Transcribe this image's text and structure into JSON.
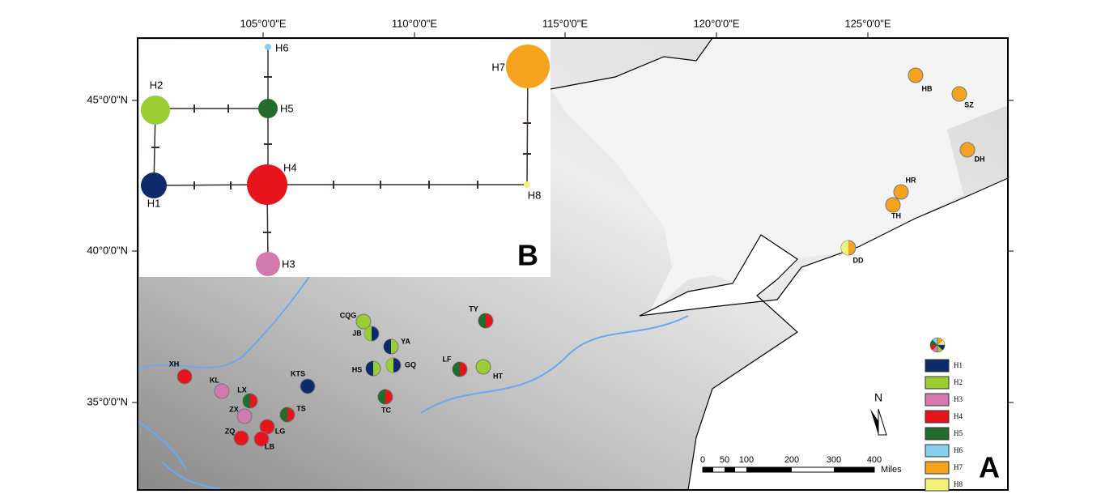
{
  "axes": {
    "top": [
      "105°0'0\"E",
      "110°0'0\"E",
      "115°0'0\"E",
      "120°0'0\"E",
      "125°0'0\"E"
    ],
    "left": [
      "45°0'0\"N",
      "40°0'0\"N",
      "35°0'0\"N"
    ]
  },
  "network": {
    "nodes": [
      "H1",
      "H2",
      "H3",
      "H4",
      "H5",
      "H6",
      "H7",
      "H8"
    ]
  },
  "populations": [
    "CQG",
    "JB",
    "YA",
    "HS",
    "GQ",
    "TY",
    "LF",
    "HT",
    "KTS",
    "TC",
    "XH",
    "KL",
    "LX",
    "ZX",
    "TS",
    "LG",
    "ZQ",
    "LB",
    "HB",
    "SZ",
    "DH",
    "HR",
    "TH",
    "DD"
  ],
  "legend": [
    "H1",
    "H2",
    "H3",
    "H4",
    "H5",
    "H6",
    "H7",
    "H8"
  ],
  "scale": {
    "labels": [
      "0",
      "50",
      "100",
      "200",
      "300",
      "400"
    ],
    "unit": "Miles"
  },
  "north": "N",
  "panel_a": "A",
  "panel_b": "B"
}
